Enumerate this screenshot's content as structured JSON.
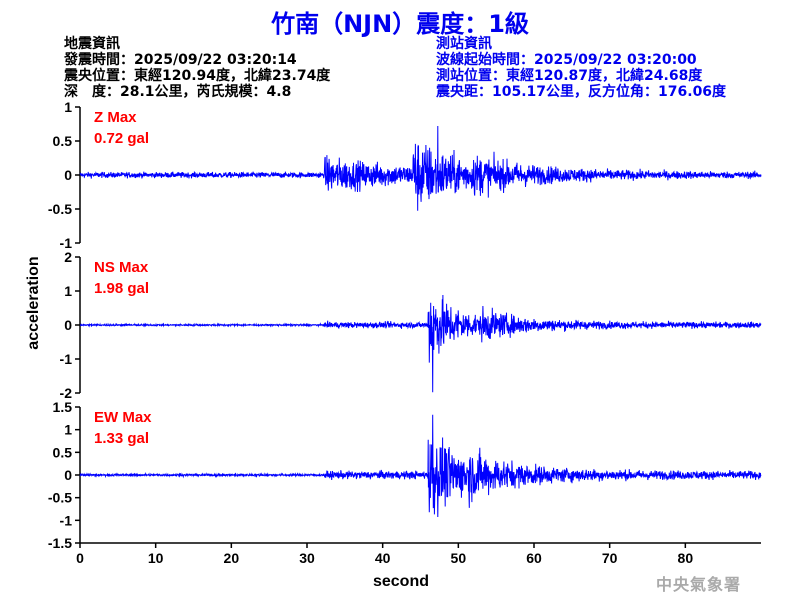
{
  "title": "竹南（NJN）震度：1級",
  "quake_info": {
    "heading": "地震資訊",
    "origin_time": "發震時間：2025/09/22 03:20:14",
    "epicenter": "震央位置：東經120.94度，北緯23.74度",
    "depth_magnitude": "深　度：28.1公里，芮氏規模：4.8"
  },
  "station_info": {
    "heading": "測站資訊",
    "wave_start": "波線起始時間：2025/09/22 03:20:00",
    "location": "測站位置：東經120.87度，北緯24.68度",
    "distance": "震央距：105.17公里，反方位角：176.06度"
  },
  "watermark": "中央氣象署",
  "chart_data": {
    "type": "line",
    "xlabel": "second",
    "ylabel": "acceleration",
    "xlim": [
      0,
      90
    ],
    "x_ticks": [
      "0",
      "10",
      "20",
      "30",
      "40",
      "50",
      "60",
      "70",
      "80"
    ],
    "line_color": "#0000ff",
    "label_color": "#ff0000",
    "panels": [
      {
        "name": "Z Max",
        "max_label": "0.72 gal",
        "peak": 0.72,
        "ylim": [
          -1,
          1
        ],
        "y_ticks": [
          "1",
          "0.5",
          "0",
          "-0.5",
          "-1"
        ]
      },
      {
        "name": "NS Max",
        "max_label": "1.98 gal",
        "peak": 1.98,
        "ylim": [
          -2,
          2
        ],
        "y_ticks": [
          "2",
          "1",
          "0",
          "-1",
          "-2"
        ]
      },
      {
        "name": "EW Max",
        "max_label": "1.33 gal",
        "peak": 1.33,
        "ylim": [
          -1.5,
          1.5
        ],
        "y_ticks": [
          "1.5",
          "1",
          "0.5",
          "0",
          "-0.5",
          "-1",
          "-1.5"
        ]
      }
    ]
  }
}
